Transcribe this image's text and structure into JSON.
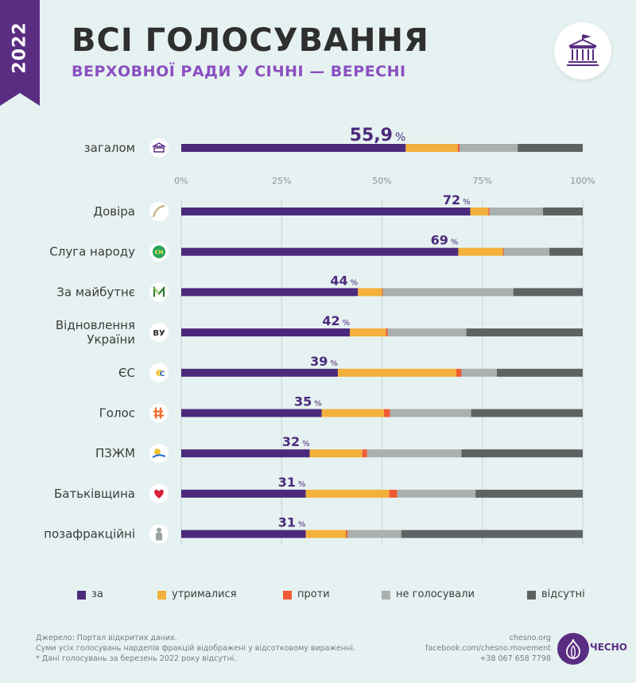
{
  "header": {
    "year": "2022",
    "title": "ВСІ ГОЛОСУВАННЯ",
    "subtitle": "ВЕРХОВНОЇ РАДИ У СІЧНІ — ВЕРЕСНІ"
  },
  "chart_data": {
    "type": "bar",
    "orientation": "horizontal",
    "stacked": true,
    "unit": "%",
    "xlim": [
      0,
      100
    ],
    "ticks": [
      "0%",
      "25%",
      "50%",
      "75%",
      "100%"
    ],
    "grid": true,
    "series_names": [
      "за",
      "утрималися",
      "проти",
      "не голосували",
      "відсутні"
    ],
    "series_colors": [
      "#4b2a7b",
      "#f3b03b",
      "#ef5a33",
      "#a9b0ae",
      "#5d6263"
    ],
    "overall": {
      "label": "загалом",
      "value_number": "55,9",
      "pct_sign": "%",
      "icon": "parliament-icon",
      "values": [
        55.9,
        13.0,
        0.4,
        14.5,
        16.2
      ]
    },
    "factions": [
      {
        "label": "Довіра",
        "value_number": "72",
        "pct_sign": "%",
        "icon": "dovira-logo-icon",
        "values": [
          72,
          4.5,
          0.3,
          13.3,
          9.9
        ]
      },
      {
        "label": "Слуга народу",
        "value_number": "69",
        "pct_sign": "%",
        "icon": "sluha-narodu-logo-icon",
        "values": [
          69,
          11.1,
          0.2,
          11.4,
          8.3
        ]
      },
      {
        "label": "За майбутнє",
        "value_number": "44",
        "pct_sign": "%",
        "icon": "za-maybutnie-logo-icon",
        "values": [
          44,
          6.0,
          0.2,
          32.5,
          17.3
        ]
      },
      {
        "label": "Відновлення України",
        "value_number": "42",
        "pct_sign": "%",
        "icon": "vidnovlennia-logo-icon",
        "values": [
          42,
          9.0,
          0.4,
          19.6,
          29.0
        ]
      },
      {
        "label": "ЄС",
        "value_number": "39",
        "pct_sign": "%",
        "icon": "yes-logo-icon",
        "values": [
          39,
          29.5,
          1.3,
          8.8,
          21.4
        ]
      },
      {
        "label": "Голос",
        "value_number": "35",
        "pct_sign": "%",
        "icon": "holos-logo-icon",
        "values": [
          35,
          15.5,
          1.5,
          20.2,
          27.8
        ]
      },
      {
        "label": "ПЗЖМ",
        "value_number": "32",
        "pct_sign": "%",
        "icon": "pzzhm-logo-icon",
        "values": [
          32,
          13.1,
          1.2,
          23.5,
          30.2
        ]
      },
      {
        "label": "Батьківщина",
        "value_number": "31",
        "pct_sign": "%",
        "icon": "batkivshchyna-logo-icon",
        "values": [
          31,
          20.8,
          2.0,
          19.5,
          26.7
        ]
      },
      {
        "label": "позафракційні",
        "value_number": "31",
        "pct_sign": "%",
        "icon": "nonfaction-person-icon",
        "values": [
          31,
          10.0,
          0.4,
          13.4,
          45.2
        ]
      }
    ]
  },
  "legend": [
    {
      "label": "за",
      "color": "#4b2a7b"
    },
    {
      "label": "утрималися",
      "color": "#f3b03b"
    },
    {
      "label": "проти",
      "color": "#ef5a33"
    },
    {
      "label": "не голосували",
      "color": "#a9b0ae"
    },
    {
      "label": "відсутні",
      "color": "#5d6263"
    }
  ],
  "footer": {
    "notes": [
      "Джерело: Портал відкритих даних.",
      "Суми усіх голосувань нардепів фракцій відображені у відсотковому вираженні.",
      "* Дані голосувань за березень 2022 року відсутні."
    ],
    "contacts": [
      "chesno.org",
      "facebook.com/chesno.movement",
      "+38 067 658 7798"
    ],
    "brand": "ЧЕСНО"
  }
}
